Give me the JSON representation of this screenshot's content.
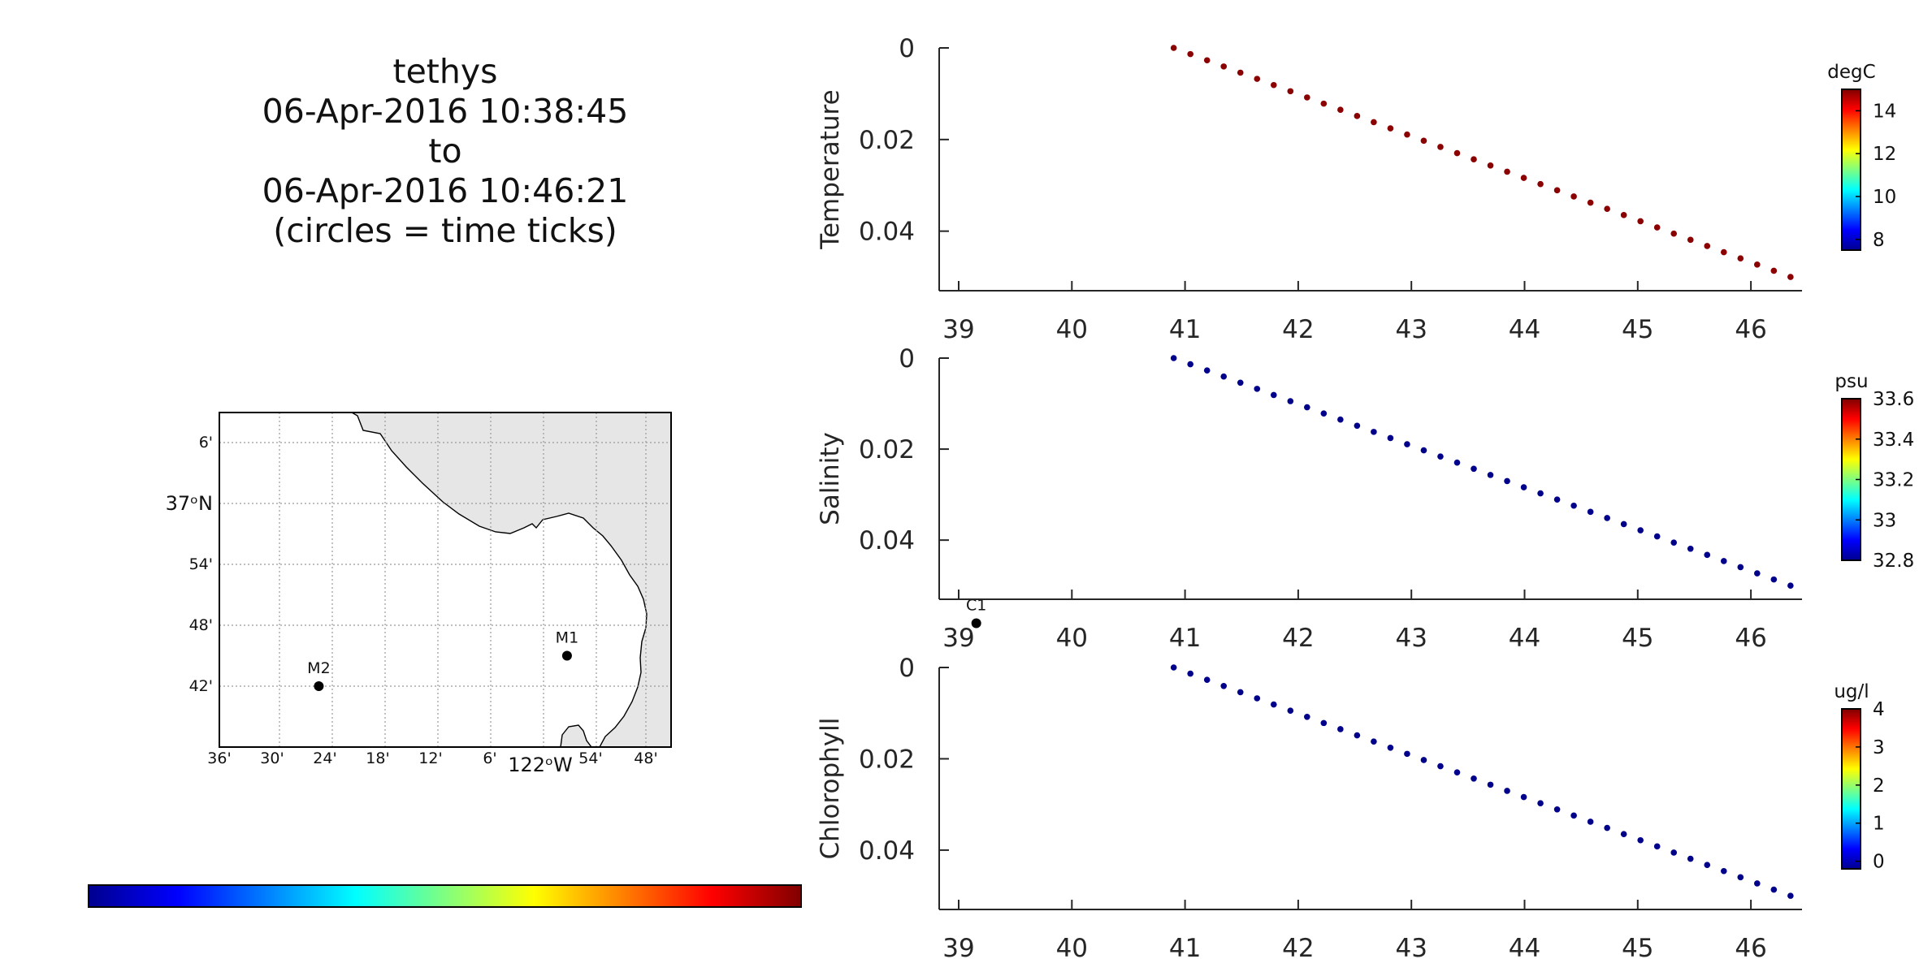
{
  "title": {
    "lines": [
      "tethys",
      "06-Apr-2016 10:38:45",
      "to",
      "06-Apr-2016 10:46:21",
      "(circles = time ticks)"
    ]
  },
  "map": {
    "lat_ticks": [
      "6'",
      "37ᵒN",
      "54'",
      "48'",
      "42'"
    ],
    "lon_ticks": [
      "36'",
      "30'",
      "24'",
      "18'",
      "12'",
      "6'",
      "122ᵒW",
      "54'",
      "48'"
    ],
    "stations": [
      {
        "name": "C1",
        "lon_min_w": -50.0,
        "lat_min_n": -11.8
      },
      {
        "name": "M1",
        "lon_min_w": -3.5,
        "lat_min_n": -15.0
      },
      {
        "name": "M2",
        "lon_min_w": 24.7,
        "lat_min_n": -18.0
      }
    ],
    "colors": {
      "land": "#e6e6e6",
      "grid": "#999999",
      "station": "#000000"
    }
  },
  "chart_data": [
    {
      "type": "scatter",
      "ylabel": "Temperature",
      "colorbar": {
        "unit": "degC",
        "ticks": [
          "8",
          "10",
          "12",
          "14"
        ],
        "range": [
          7.5,
          15.0
        ]
      },
      "marker_color": "#8b0000",
      "x": [
        40.9,
        46.35
      ],
      "y": [
        0.0,
        0.05
      ],
      "npoints": 38,
      "xlim": [
        38.75,
        46.35
      ],
      "ylim": [
        0.0,
        0.053
      ],
      "xticks": [
        "39",
        "40",
        "41",
        "42",
        "43",
        "44",
        "45",
        "46"
      ],
      "yticks": [
        "0",
        "0.02",
        "0.04"
      ]
    },
    {
      "type": "scatter",
      "ylabel": "Salinity",
      "colorbar": {
        "unit": "psu",
        "ticks": [
          "32.8",
          "33",
          "33.2",
          "33.4",
          "33.6"
        ],
        "range": [
          32.8,
          33.6
        ]
      },
      "marker_color": "#00008b",
      "x": [
        40.9,
        46.35
      ],
      "y": [
        0.0,
        0.05
      ],
      "npoints": 38,
      "xlim": [
        38.75,
        46.35
      ],
      "ylim": [
        0.0,
        0.053
      ],
      "xticks": [
        "39",
        "40",
        "41",
        "42",
        "43",
        "44",
        "45",
        "46"
      ],
      "yticks": [
        "0",
        "0.02",
        "0.04"
      ]
    },
    {
      "type": "scatter",
      "ylabel": "Chlorophyll",
      "colorbar": {
        "unit": "ug/l",
        "ticks": [
          "0",
          "1",
          "2",
          "3",
          "4"
        ],
        "range": [
          -0.2,
          4.0
        ]
      },
      "marker_color": "#00008b",
      "x": [
        40.9,
        46.35
      ],
      "y": [
        0.0,
        0.05
      ],
      "npoints": 38,
      "xlim": [
        38.75,
        46.35
      ],
      "ylim": [
        0.0,
        0.053
      ],
      "xticks": [
        "39",
        "40",
        "41",
        "42",
        "43",
        "44",
        "45",
        "46"
      ],
      "yticks": [
        "0",
        "0.02",
        "0.04"
      ]
    }
  ]
}
